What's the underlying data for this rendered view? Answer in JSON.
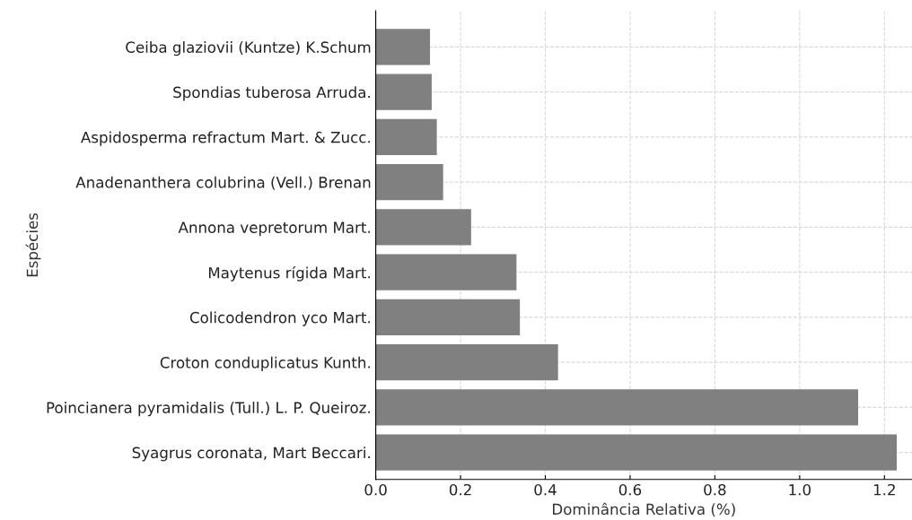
{
  "chart_data": {
    "type": "bar",
    "orientation": "horizontal",
    "xlabel": "Dominância Relativa (%)",
    "ylabel": "Espécies",
    "categories": [
      "Ceiba glaziovii (Kuntze) K.Schum",
      "Spondias tuberosa Arruda.",
      "Aspidosperma refractum Mart. & Zucc.",
      "Anadenanthera colubrina (Vell.) Brenan",
      "Annona vepretorum Mart.",
      "Maytenus rígida Mart.",
      "Colicodendron yco Mart.",
      "Croton conduplicatus Kunth.",
      "Poincianera pyramidalis (Tull.) L. P. Queiroz.",
      "Syagrus coronata, Mart Beccari."
    ],
    "values": [
      0.128,
      0.132,
      0.144,
      0.159,
      0.225,
      0.332,
      0.34,
      0.43,
      1.138,
      1.229
    ],
    "color": "#808080",
    "xlim": [
      0,
      1.265
    ],
    "xticks": [
      {
        "value": 0,
        "label": "0.0"
      },
      0.2,
      0.4,
      0.6,
      0.8,
      {
        "value": 1.0,
        "label": "1.0"
      },
      1.2
    ],
    "grid": true
  }
}
